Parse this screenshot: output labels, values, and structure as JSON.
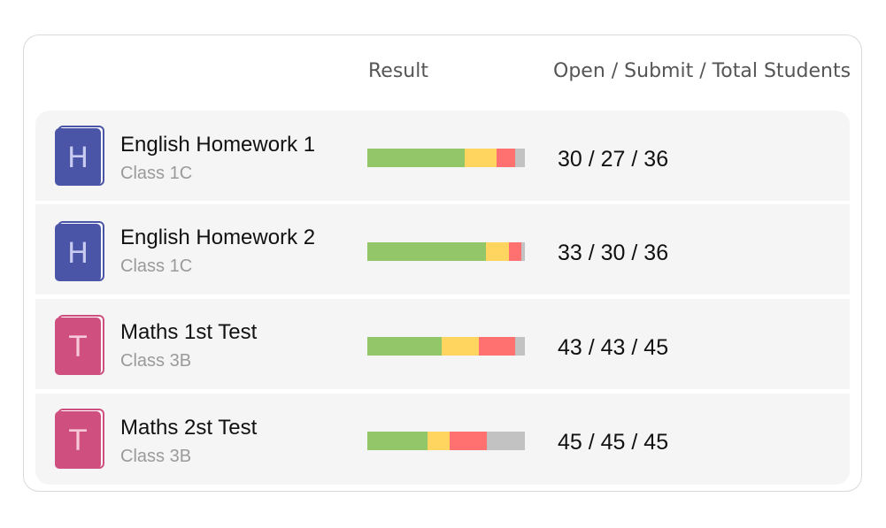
{
  "header": {
    "result_label": "Result",
    "counts_label": "Open / Submit / Total Students"
  },
  "colors": {
    "english_cover": "#4a55a8",
    "english_letter": "#c9ccf0",
    "maths_cover": "#cf4f7f",
    "maths_letter": "#f6c8d8",
    "result_green": "#93c569",
    "result_yellow": "#ffd55f",
    "result_red": "#ff7171",
    "result_gray": "#c2c2c2",
    "row_background": "#f5f5f5"
  },
  "assignments": [
    {
      "icon": "book-icon",
      "icon_letter": "H",
      "title": "English Homework 1",
      "class_name": "Class 1C",
      "counts": "30 / 27 / 36",
      "result_fractions": {
        "green": 0.62,
        "yellow": 0.2,
        "red": 0.12,
        "gray": 0.06
      }
    },
    {
      "icon": "book-icon",
      "icon_letter": "H",
      "title": "English Homework 2",
      "class_name": "Class 1C",
      "counts": "33 / 30 / 36",
      "result_fractions": {
        "green": 0.75,
        "yellow": 0.15,
        "red": 0.08,
        "gray": 0.02
      }
    },
    {
      "icon": "book-icon",
      "icon_letter": "T",
      "title": "Maths 1st Test",
      "class_name": "Class 3B",
      "counts": "43 / 43 / 45",
      "result_fractions": {
        "green": 0.47,
        "yellow": 0.24,
        "red": 0.23,
        "gray": 0.06
      }
    },
    {
      "icon": "book-icon",
      "icon_letter": "T",
      "title": "Maths 2st Test",
      "class_name": "Class 3B",
      "counts": "45 / 45 / 45",
      "result_fractions": {
        "green": 0.38,
        "yellow": 0.14,
        "red": 0.24,
        "gray": 0.24
      }
    }
  ]
}
